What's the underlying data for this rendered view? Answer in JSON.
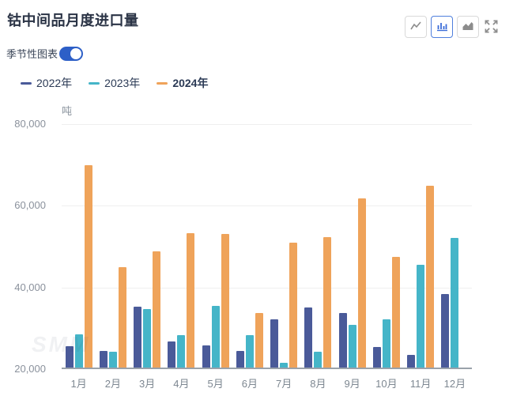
{
  "header": {
    "title": "钴中间品月度进口量",
    "chart_type_buttons": [
      {
        "name": "line-chart",
        "selected": false
      },
      {
        "name": "bar-chart",
        "selected": true
      },
      {
        "name": "area-chart",
        "selected": false
      }
    ]
  },
  "controls": {
    "seasonal_toggle_label": "季节性图表",
    "seasonal_toggle_on": true
  },
  "legend": [
    {
      "label": "2022年",
      "color": "#4a5a99",
      "bold": false
    },
    {
      "label": "2023年",
      "color": "#45b5c8",
      "bold": false
    },
    {
      "label": "2024年",
      "color": "#efa35a",
      "bold": true
    }
  ],
  "colors": {
    "accent_blue": "#2d5fc7",
    "selected_button_blue": "#4f7fdd",
    "icon_gray": "#8c8c8c",
    "axis_label_gray": "#8a919c",
    "title_color": "#2a3345"
  },
  "chart_data": {
    "type": "bar",
    "title": "钴中间品月度进口量",
    "unit_label": "吨",
    "categories": [
      "1月",
      "2月",
      "3月",
      "4月",
      "5月",
      "6月",
      "7月",
      "8月",
      "9月",
      "10月",
      "11月",
      "12月"
    ],
    "series": [
      {
        "name": "2022年",
        "color": "#4a5a99",
        "values": [
          25200,
          24000,
          34900,
          26400,
          25400,
          24000,
          31800,
          34800,
          33300,
          25000,
          23100,
          38000
        ]
      },
      {
        "name": "2023年",
        "color": "#45b5c8",
        "values": [
          28100,
          23800,
          34300,
          28000,
          35100,
          27900,
          21200,
          23900,
          30500,
          31800,
          45100,
          51800
        ]
      },
      {
        "name": "2024年",
        "color": "#efa35a",
        "values": [
          69600,
          44600,
          48400,
          52900,
          52700,
          33400,
          50500,
          52000,
          61500,
          47100,
          64500,
          null
        ]
      }
    ],
    "ylim": [
      20000,
      80000
    ],
    "yticks": [
      80000,
      60000,
      40000,
      20000
    ],
    "grid": true,
    "legend_position": "top",
    "watermark": "SMM"
  }
}
